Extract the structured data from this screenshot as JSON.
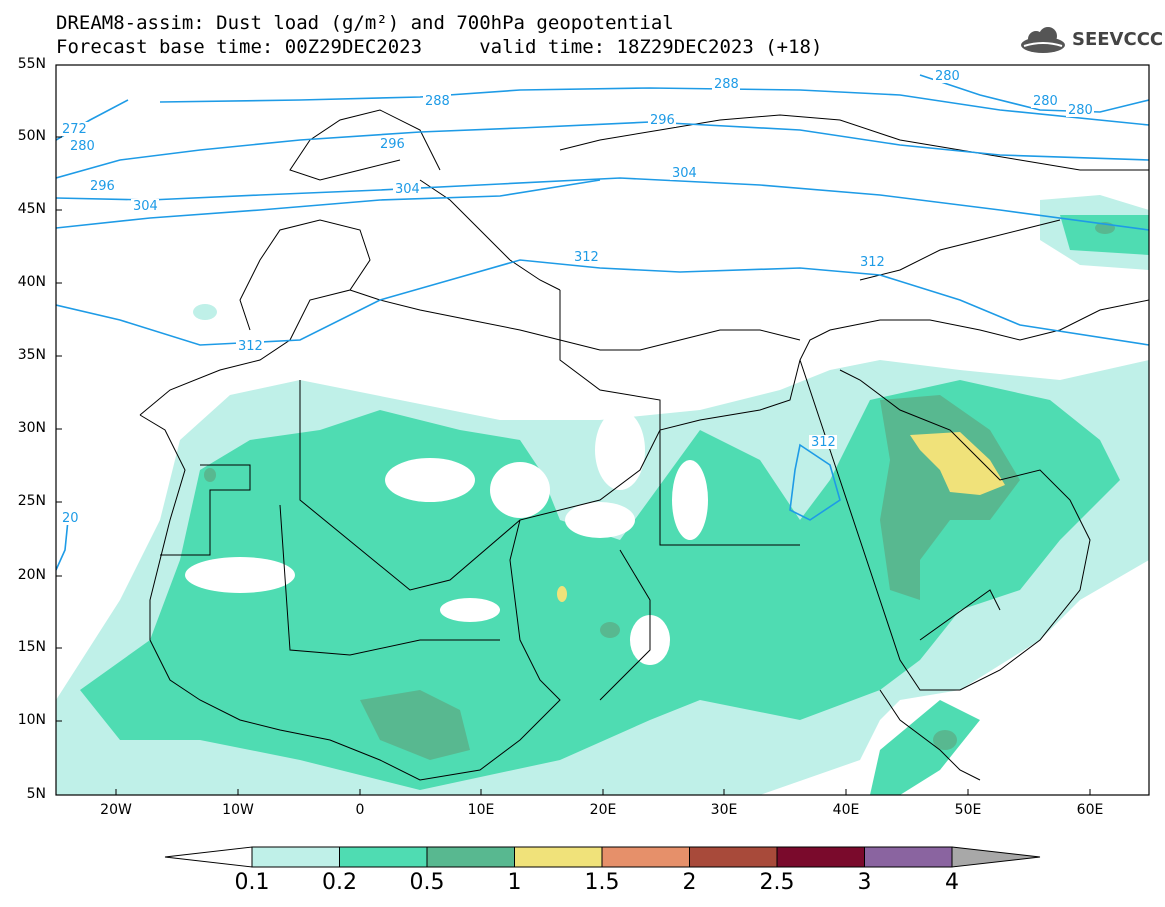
{
  "title": {
    "line1": "DREAM8-assim: Dust load (g/m²) and 700hPa geopotential",
    "line2": "Forecast base time: 00Z29DEC2023     valid time: 18Z29DEC2023 (+18)"
  },
  "logo": {
    "text": "SEEVCCC",
    "icon": "cloud-icon"
  },
  "axes": {
    "lat_labels": [
      "55N",
      "50N",
      "45N",
      "40N",
      "35N",
      "30N",
      "25N",
      "20N",
      "15N",
      "10N",
      "5N"
    ],
    "lon_labels": [
      "20W",
      "10W",
      "0",
      "10E",
      "20E",
      "30E",
      "40E",
      "50E",
      "60E"
    ]
  },
  "contour_labels": [
    "288",
    "288",
    "296",
    "296",
    "296",
    "304",
    "304",
    "304",
    "312",
    "312",
    "312",
    "312",
    "280",
    "280",
    "280",
    "280",
    "272",
    "20"
  ],
  "colorbar": {
    "ticks": [
      "0.1",
      "0.2",
      "0.5",
      "1",
      "1.5",
      "2",
      "2.5",
      "3",
      "4"
    ],
    "colors": [
      "#ffffff",
      "#bff0e8",
      "#4fdcb2",
      "#58b890",
      "#f0e27a",
      "#e6906a",
      "#a84a3a",
      "#7a0a2c",
      "#8a64a0",
      "#a8a8a8"
    ]
  },
  "colors": {
    "contour": "#1e9be6",
    "dust_low": "#bff0e8",
    "dust_mid": "#4fdcb2",
    "dust_high": "#58b890",
    "dust_max": "#f0e27a"
  }
}
